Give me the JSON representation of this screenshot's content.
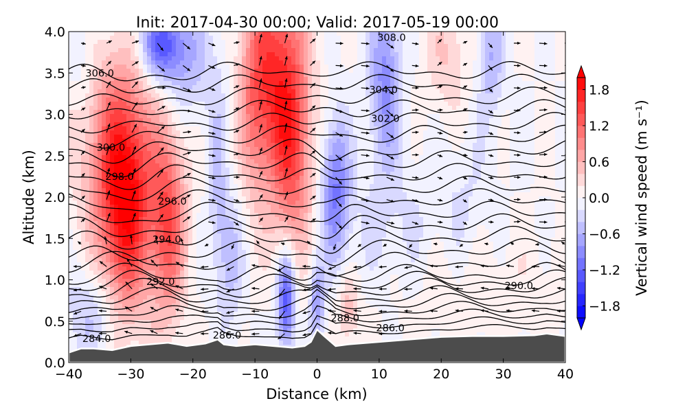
{
  "chart_data": {
    "type": "heatmap",
    "title": "Init: 2017-04-30 00:00; Valid: 2017-05-19 00:00",
    "xlabel": "Distance (km)",
    "ylabel": "Altitude (km)",
    "xlim": [
      -40,
      40
    ],
    "ylim": [
      0.0,
      4.0
    ],
    "xticks": [
      "−40",
      "−30",
      "−20",
      "−10",
      "0",
      "10",
      "20",
      "30",
      "40"
    ],
    "xtick_values": [
      -40,
      -30,
      -20,
      -10,
      0,
      10,
      20,
      30,
      40
    ],
    "yticks": [
      "0.0",
      "0.5",
      "1.0",
      "1.5",
      "2.0",
      "2.5",
      "3.0",
      "3.5",
      "4.0"
    ],
    "ytick_values": [
      0.0,
      0.5,
      1.0,
      1.5,
      2.0,
      2.5,
      3.0,
      3.5,
      4.0
    ],
    "grid": false,
    "colorbar": {
      "label": "Vertical wind speed (m s⁻¹)",
      "location": "right",
      "extend": "both",
      "vmin": -2.0,
      "vmax": 2.0,
      "step": 0.2,
      "ticks": [
        "−1.8",
        "−1.2",
        "−0.6",
        "0.0",
        "0.6",
        "1.2",
        "1.8"
      ],
      "tick_values": [
        -1.8,
        -1.2,
        -0.6,
        0.0,
        0.6,
        1.2,
        1.8
      ],
      "low_color": "#0000ff",
      "mid_color": "#ffffff",
      "high_color": "#ff0000"
    },
    "filled_field": {
      "name": "Vertical wind speed",
      "units": "m s-1",
      "features": [
        {
          "x": -31,
          "z": 1.9,
          "sx": 3.0,
          "sz": 0.9,
          "w": 1.9
        },
        {
          "x": -33,
          "z": 2.8,
          "sx": 5.0,
          "sz": 0.8,
          "w": 0.6
        },
        {
          "x": -24,
          "z": 1.7,
          "sx": 2.0,
          "sz": 0.8,
          "w": 1.3
        },
        {
          "x": -6,
          "z": 3.5,
          "sx": 3.0,
          "sz": 0.9,
          "w": 1.4
        },
        {
          "x": -4,
          "z": 2.4,
          "sx": 2.2,
          "sz": 0.8,
          "w": 1.0
        },
        {
          "x": -10,
          "z": 3.2,
          "sx": 2.0,
          "sz": 0.9,
          "w": 0.8
        },
        {
          "x": -25,
          "z": 3.85,
          "sx": 2.5,
          "sz": 0.3,
          "w": -1.2
        },
        {
          "x": -21,
          "z": 3.6,
          "sx": 3.5,
          "sz": 0.5,
          "w": -0.5
        },
        {
          "x": 3,
          "z": 2.1,
          "sx": 1.6,
          "sz": 0.6,
          "w": -1.0
        },
        {
          "x": 11,
          "z": 3.4,
          "sx": 1.8,
          "sz": 0.7,
          "w": -0.9
        },
        {
          "x": -5,
          "z": 0.75,
          "sx": 1.0,
          "sz": 0.4,
          "w": -1.4
        },
        {
          "x": 0,
          "z": 0.75,
          "sx": 0.8,
          "sz": 0.35,
          "w": -0.8
        },
        {
          "x": -14,
          "z": 1.3,
          "sx": 1.5,
          "sz": 0.6,
          "w": -0.5
        },
        {
          "x": -16,
          "z": 2.2,
          "sx": 1.0,
          "sz": 0.8,
          "w": -0.4
        },
        {
          "x": 5,
          "z": 0.65,
          "sx": 1.2,
          "sz": 0.3,
          "w": 0.5
        },
        {
          "x": 21,
          "z": 3.7,
          "sx": 2.5,
          "sz": 0.5,
          "w": 0.4
        },
        {
          "x": 28,
          "z": 3.7,
          "sx": 1.5,
          "sz": 0.5,
          "w": -0.6
        },
        {
          "x": 12,
          "z": 1.6,
          "sx": 6.0,
          "sz": 0.6,
          "w": -0.25
        },
        {
          "x": 24,
          "z": 2.0,
          "sx": 3.0,
          "sz": 0.6,
          "w": -0.2
        },
        {
          "x": -36,
          "z": 0.6,
          "sx": 3.0,
          "sz": 0.4,
          "w": -0.5
        },
        {
          "x": -38,
          "z": 3.6,
          "sx": 2.0,
          "sz": 0.5,
          "w": -0.3
        },
        {
          "x": 25,
          "z": 0.9,
          "sx": 12.0,
          "sz": 0.5,
          "w": 0.15
        }
      ]
    },
    "terrain": {
      "color": "#4c4c4c",
      "x": [
        -40,
        -38,
        -36,
        -33,
        -30,
        -27,
        -24,
        -21,
        -18,
        -16,
        -15,
        -13,
        -10,
        -7,
        -4,
        -2,
        -1,
        0,
        1,
        3,
        5,
        10,
        15,
        20,
        25,
        30,
        35,
        37,
        39,
        40
      ],
      "z": [
        0.12,
        0.17,
        0.17,
        0.15,
        0.2,
        0.22,
        0.24,
        0.2,
        0.23,
        0.28,
        0.22,
        0.2,
        0.22,
        0.2,
        0.18,
        0.2,
        0.25,
        0.4,
        0.33,
        0.2,
        0.22,
        0.25,
        0.28,
        0.31,
        0.32,
        0.32,
        0.33,
        0.35,
        0.33,
        0.32
      ]
    },
    "isentropes": {
      "units": "K",
      "levels_start": 284.0,
      "levels_step": 1.0,
      "count": 25,
      "labels": [
        {
          "text": "284.0",
          "x": -35.5,
          "z": 0.29
        },
        {
          "text": "286.0",
          "x": -14.5,
          "z": 0.33
        },
        {
          "text": "288.0",
          "x": 4.5,
          "z": 0.54
        },
        {
          "text": "286.0",
          "x": 11.8,
          "z": 0.42
        },
        {
          "text": "290.0",
          "x": 32.5,
          "z": 0.93
        },
        {
          "text": "292.0",
          "x": -25.2,
          "z": 0.98
        },
        {
          "text": "294.0",
          "x": -24.2,
          "z": 1.49
        },
        {
          "text": "296.0",
          "x": -23.3,
          "z": 1.95
        },
        {
          "text": "298.0",
          "x": -31.8,
          "z": 2.25
        },
        {
          "text": "300.0",
          "x": -33.2,
          "z": 2.6
        },
        {
          "text": "302.0",
          "x": 11.0,
          "z": 2.95
        },
        {
          "text": "304.0",
          "x": 10.7,
          "z": 3.3
        },
        {
          "text": "306.0",
          "x": -35.0,
          "z": 3.5
        },
        {
          "text": "308.0",
          "x": 12.0,
          "z": 3.93
        }
      ]
    },
    "wind_vectors": {
      "description": "quiver of along-section wind; westerly aloft, easterly near surface"
    }
  }
}
